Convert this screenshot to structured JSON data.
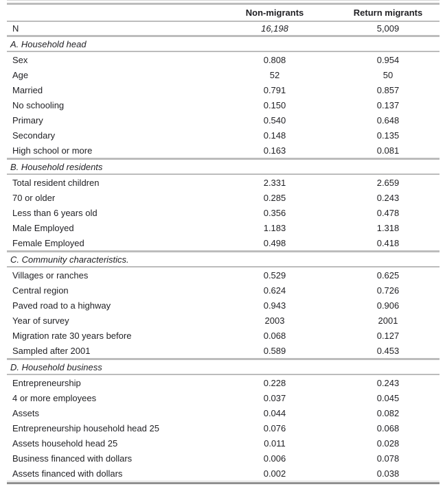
{
  "table": {
    "columns": [
      {
        "label": ""
      },
      {
        "label": "Non-migrants"
      },
      {
        "label": "Return migrants"
      }
    ],
    "n_row": {
      "label": "N",
      "non_migrants": "16,198",
      "return_migrants": "5,009"
    },
    "sections": [
      {
        "title": "A. Household head",
        "rows": [
          {
            "label": "Sex",
            "non_migrants": "0.808",
            "return_migrants": "0.954"
          },
          {
            "label": "Age",
            "non_migrants": "52",
            "return_migrants": "50"
          },
          {
            "label": "Married",
            "non_migrants": "0.791",
            "return_migrants": "0.857"
          },
          {
            "label": "No schooling",
            "non_migrants": "0.150",
            "return_migrants": "0.137"
          },
          {
            "label": "Primary",
            "non_migrants": "0.540",
            "return_migrants": "0.648"
          },
          {
            "label": "Secondary",
            "non_migrants": "0.148",
            "return_migrants": "0.135"
          },
          {
            "label": "High school or more",
            "non_migrants": "0.163",
            "return_migrants": "0.081"
          }
        ]
      },
      {
        "title": "B. Household residents",
        "rows": [
          {
            "label": "Total resident children",
            "non_migrants": "2.331",
            "return_migrants": "2.659"
          },
          {
            "label": "70 or older",
            "non_migrants": "0.285",
            "return_migrants": "0.243"
          },
          {
            "label": "Less than 6 years old",
            "non_migrants": "0.356",
            "return_migrants": "0.478"
          },
          {
            "label": "Male Employed",
            "non_migrants": "1.183",
            "return_migrants": "1.318"
          },
          {
            "label": "Female Employed",
            "non_migrants": "0.498",
            "return_migrants": "0.418"
          }
        ]
      },
      {
        "title": "C. Community characteristics.",
        "rows": [
          {
            "label": "Villages or ranches",
            "non_migrants": "0.529",
            "return_migrants": "0.625"
          },
          {
            "label": "Central region",
            "non_migrants": "0.624",
            "return_migrants": "0.726"
          },
          {
            "label": "Paved road to a highway",
            "non_migrants": "0.943",
            "return_migrants": "0.906"
          },
          {
            "label": "Year of survey",
            "non_migrants": "2003",
            "return_migrants": "2001"
          },
          {
            "label": "Migration rate 30 years before",
            "non_migrants": "0.068",
            "return_migrants": "0.127"
          },
          {
            "label": "Sampled after 2001",
            "non_migrants": "0.589",
            "return_migrants": "0.453"
          }
        ]
      },
      {
        "title": "D. Household business",
        "rows": [
          {
            "label": "Entrepreneurship",
            "non_migrants": "0.228",
            "return_migrants": "0.243"
          },
          {
            "label": "4 or more employees",
            "non_migrants": "0.037",
            "return_migrants": "0.045"
          },
          {
            "label": "Assets",
            "non_migrants": "0.044",
            "return_migrants": "0.082"
          },
          {
            "label": "Entrepreneurship household head 25",
            "non_migrants": "0.076",
            "return_migrants": "0.068"
          },
          {
            "label": "Assets household head 25",
            "non_migrants": "0.011",
            "return_migrants": "0.028"
          },
          {
            "label": "Business financed with dollars",
            "non_migrants": "0.006",
            "return_migrants": "0.078"
          },
          {
            "label": "Assets financed with dollars",
            "non_migrants": "0.002",
            "return_migrants": "0.038"
          }
        ]
      }
    ],
    "colors": {
      "rule": "#bcbcbc",
      "rule_top_faint": "#d4d4d4",
      "rule_bottom_dark": "#8f8f8f",
      "text": "#1f1f23",
      "background": "#ffffff"
    }
  }
}
